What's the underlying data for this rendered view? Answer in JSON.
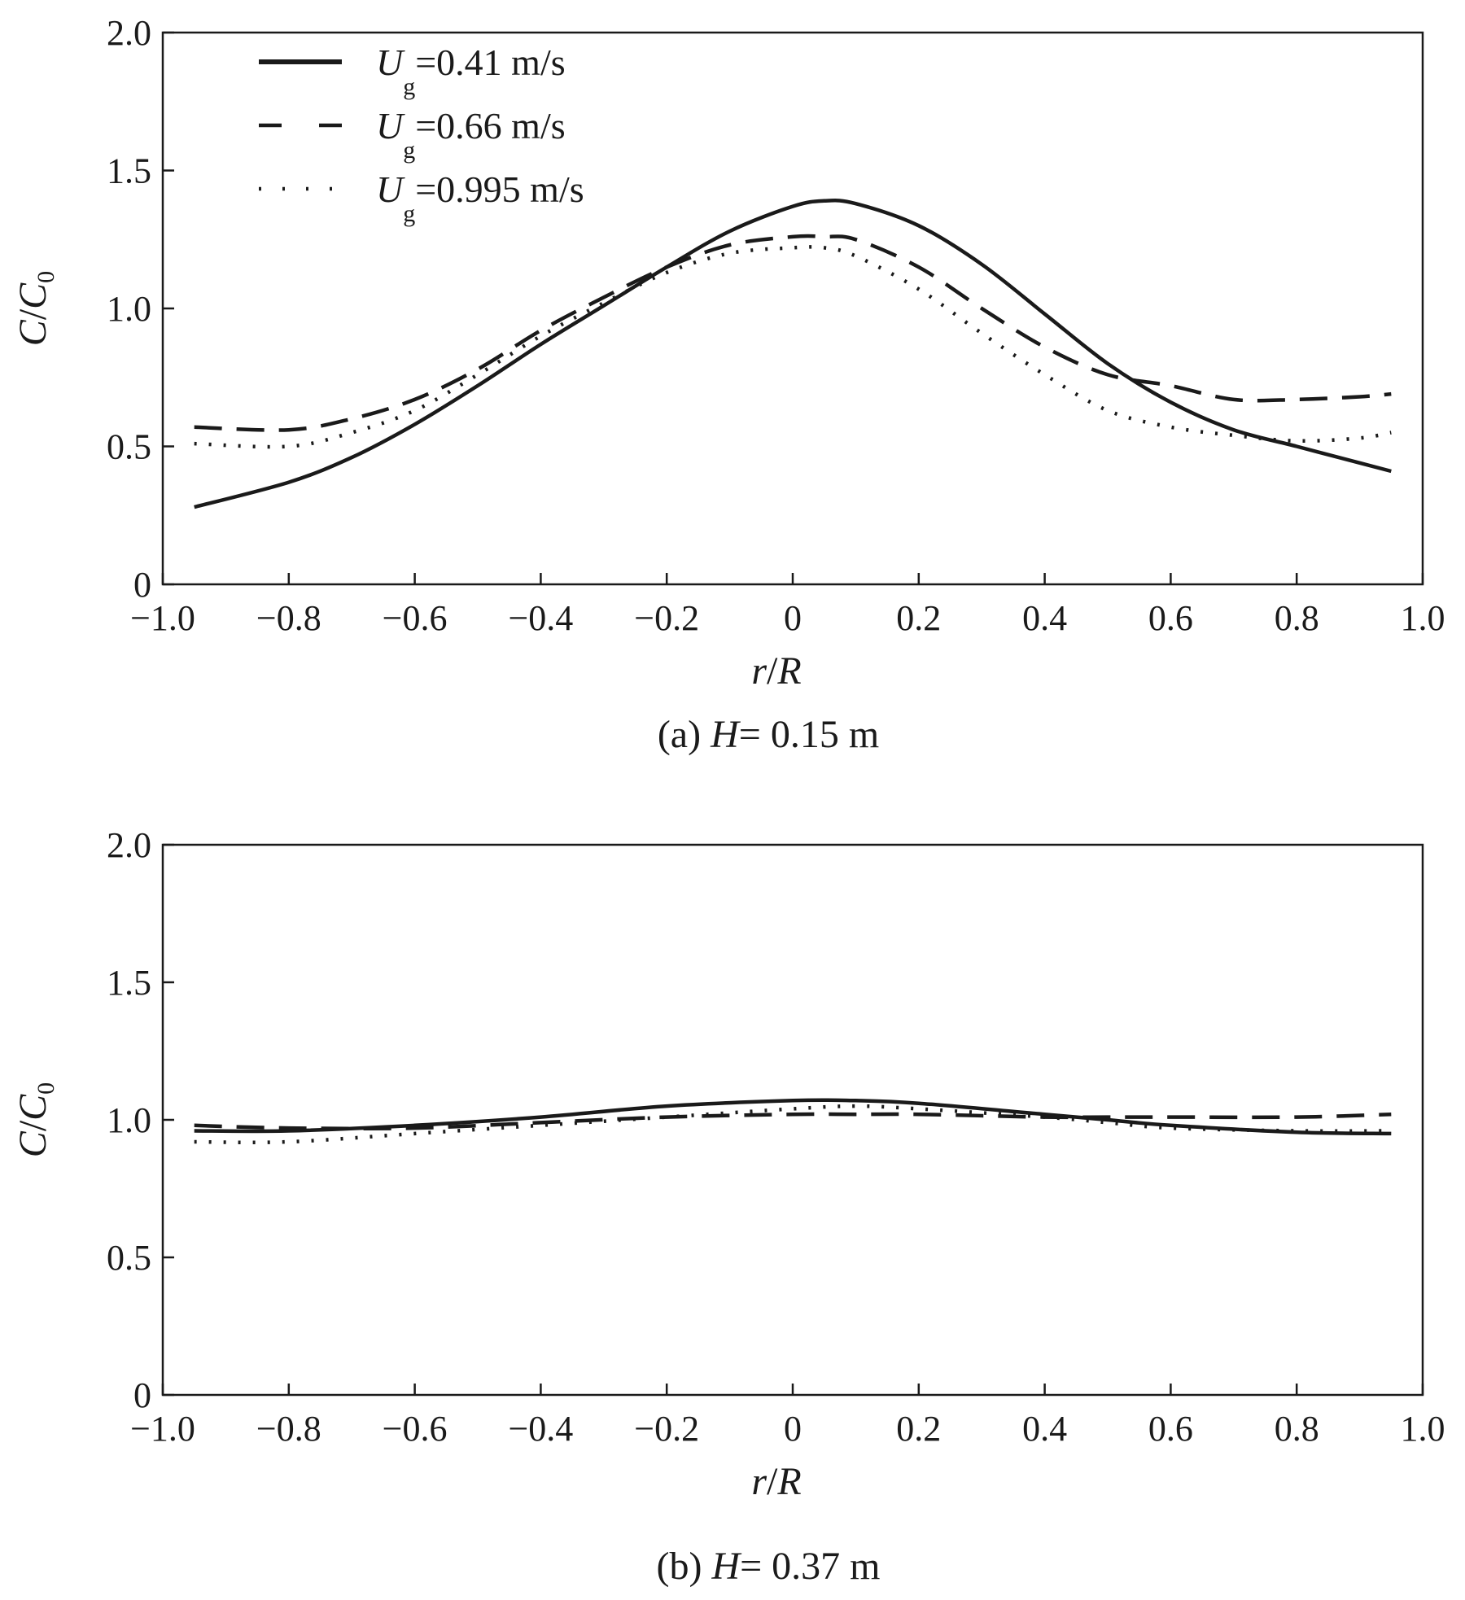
{
  "chart_data": [
    {
      "type": "line",
      "caption_prefix": "(a) ",
      "caption_var": "H",
      "caption_rest": "= 0.15 m",
      "xlabel": {
        "italic1": "r",
        "slash": "/",
        "italic2": "R"
      },
      "ylabel": {
        "main": "C",
        "slash": "/",
        "main2": "C",
        "sub": "0"
      },
      "xlim": [
        -1.0,
        1.0
      ],
      "ylim": [
        0,
        2.0
      ],
      "xticks": [
        "−1.0",
        "−0.8",
        "−0.6",
        "−0.4",
        "−0.2",
        "0",
        "0.2",
        "0.4",
        "0.6",
        "0.8",
        "1.0"
      ],
      "xtick_values": [
        -1.0,
        -0.8,
        -0.6,
        -0.4,
        -0.2,
        0,
        0.2,
        0.4,
        0.6,
        0.8,
        1.0
      ],
      "yticks": [
        "0",
        "0.5",
        "1.0",
        "1.5",
        "2.0"
      ],
      "ytick_values": [
        0,
        0.5,
        1.0,
        1.5,
        2.0
      ],
      "legend_position": "top-left",
      "x": [
        -0.95,
        -0.8,
        -0.7,
        -0.6,
        -0.5,
        -0.4,
        -0.3,
        -0.2,
        -0.1,
        0.0,
        0.05,
        0.1,
        0.2,
        0.3,
        0.4,
        0.5,
        0.6,
        0.7,
        0.8,
        0.9,
        0.95
      ],
      "series": [
        {
          "name": {
            "var": "U",
            "sub": "g",
            "rest": "=0.41 m/s"
          },
          "style": "solid",
          "values": [
            0.28,
            0.37,
            0.46,
            0.58,
            0.72,
            0.87,
            1.01,
            1.15,
            1.28,
            1.37,
            1.39,
            1.38,
            1.3,
            1.16,
            0.98,
            0.8,
            0.66,
            0.56,
            0.5,
            0.44,
            0.41
          ]
        },
        {
          "name": {
            "var": "U",
            "sub": "g",
            "rest": "=0.66 m/s"
          },
          "style": "dashed",
          "values": [
            0.57,
            0.56,
            0.6,
            0.67,
            0.78,
            0.92,
            1.04,
            1.15,
            1.23,
            1.26,
            1.26,
            1.25,
            1.15,
            1.0,
            0.86,
            0.76,
            0.72,
            0.67,
            0.67,
            0.68,
            0.69
          ]
        },
        {
          "name": {
            "var": "U",
            "sub": "g",
            "rest": "=0.995 m/s"
          },
          "style": "dotted",
          "values": [
            0.51,
            0.5,
            0.55,
            0.63,
            0.76,
            0.9,
            1.02,
            1.13,
            1.2,
            1.22,
            1.22,
            1.19,
            1.07,
            0.91,
            0.76,
            0.63,
            0.57,
            0.54,
            0.52,
            0.53,
            0.55
          ]
        }
      ]
    },
    {
      "type": "line",
      "caption_prefix": "(b) ",
      "caption_var": "H",
      "caption_rest": "= 0.37 m",
      "xlabel": {
        "italic1": "r",
        "slash": "/",
        "italic2": "R"
      },
      "ylabel": {
        "main": "C",
        "slash": "/",
        "main2": "C",
        "sub": "0"
      },
      "xlim": [
        -1.0,
        1.0
      ],
      "ylim": [
        0,
        2.0
      ],
      "xticks": [
        "−1.0",
        "−0.8",
        "−0.6",
        "−0.4",
        "−0.2",
        "0",
        "0.2",
        "0.4",
        "0.6",
        "0.8",
        "1.0"
      ],
      "xtick_values": [
        -1.0,
        -0.8,
        -0.6,
        -0.4,
        -0.2,
        0,
        0.2,
        0.4,
        0.6,
        0.8,
        1.0
      ],
      "yticks": [
        "0",
        "0.5",
        "1.0",
        "1.5",
        "2.0"
      ],
      "ytick_values": [
        0,
        0.5,
        1.0,
        1.5,
        2.0
      ],
      "x": [
        -0.95,
        -0.8,
        -0.6,
        -0.4,
        -0.2,
        0.0,
        0.1,
        0.2,
        0.4,
        0.5,
        0.6,
        0.8,
        0.95
      ],
      "series": [
        {
          "style": "solid",
          "values": [
            0.96,
            0.96,
            0.98,
            1.01,
            1.05,
            1.07,
            1.07,
            1.06,
            1.02,
            1.0,
            0.98,
            0.955,
            0.95
          ]
        },
        {
          "style": "dashed",
          "values": [
            0.98,
            0.97,
            0.97,
            0.99,
            1.01,
            1.02,
            1.02,
            1.02,
            1.01,
            1.01,
            1.01,
            1.01,
            1.02
          ]
        },
        {
          "style": "dotted",
          "values": [
            0.92,
            0.92,
            0.95,
            0.98,
            1.01,
            1.04,
            1.05,
            1.04,
            1.01,
            0.99,
            0.97,
            0.96,
            0.96
          ]
        }
      ]
    }
  ]
}
